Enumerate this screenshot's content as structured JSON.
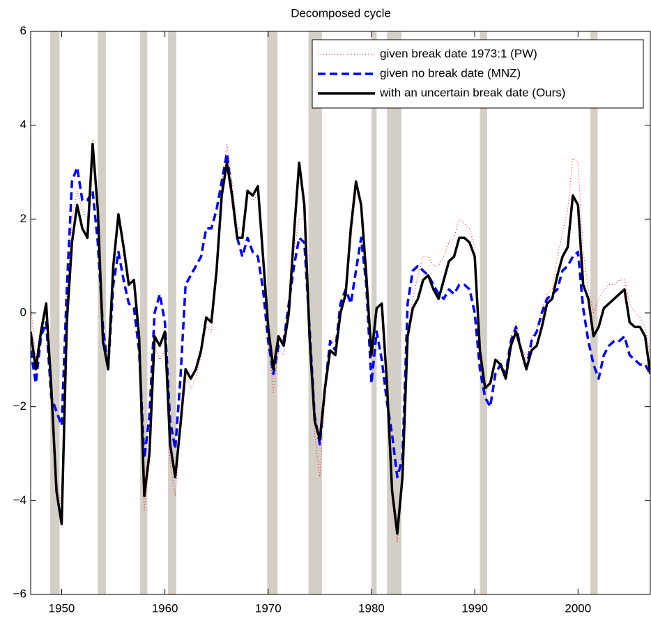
{
  "chart_data": {
    "type": "line",
    "title": "Decomposed cycle",
    "x": [
      1947,
      1947.5,
      1948,
      1948.5,
      1949,
      1949.5,
      1950,
      1950.5,
      1951,
      1951.5,
      1952,
      1952.5,
      1953,
      1953.5,
      1954,
      1954.5,
      1955,
      1955.5,
      1956,
      1956.5,
      1957,
      1957.5,
      1958,
      1958.5,
      1959,
      1959.5,
      1960,
      1960.5,
      1961,
      1961.5,
      1962,
      1962.5,
      1963,
      1963.5,
      1964,
      1964.5,
      1965,
      1965.5,
      1966,
      1966.5,
      1967,
      1967.5,
      1968,
      1968.5,
      1969,
      1969.5,
      1970,
      1970.5,
      1971,
      1971.5,
      1972,
      1972.5,
      1973,
      1973.5,
      1974,
      1974.5,
      1975,
      1975.5,
      1976,
      1976.5,
      1977,
      1977.5,
      1978,
      1978.5,
      1979,
      1979.5,
      1980,
      1980.5,
      1981,
      1981.5,
      1982,
      1982.5,
      1983,
      1983.5,
      1984,
      1984.5,
      1985,
      1985.5,
      1986,
      1986.5,
      1987,
      1987.5,
      1988,
      1988.5,
      1989,
      1989.5,
      1990,
      1990.5,
      1991,
      1991.5,
      1992,
      1992.5,
      1993,
      1993.5,
      1994,
      1994.5,
      1995,
      1995.5,
      1996,
      1996.5,
      1997,
      1997.5,
      1998,
      1998.5,
      1999,
      1999.5,
      2000,
      2000.5,
      2001,
      2001.5,
      2002,
      2002.5,
      2003,
      2003.5,
      2004,
      2004.5,
      2005,
      2005.5,
      2006,
      2006.5,
      2007
    ],
    "series": [
      {
        "name": "given break date 1973:1 (PW)",
        "color": "#ff0000",
        "style": "dotted",
        "values": [
          0.2,
          -1.0,
          -0.3,
          0.0,
          -1.3,
          -3.5,
          -4.2,
          0.3,
          2.0,
          2.6,
          2.2,
          2.0,
          3.7,
          2.2,
          -0.5,
          -1.0,
          1.0,
          2.0,
          1.5,
          0.8,
          0.6,
          -0.8,
          -4.2,
          -3.2,
          -0.7,
          -1.0,
          -0.8,
          -3.2,
          -3.9,
          -2.5,
          -1.3,
          -1.6,
          -1.4,
          -0.9,
          -0.3,
          -0.4,
          1.0,
          2.8,
          3.6,
          2.8,
          1.8,
          1.8,
          2.5,
          2.4,
          2.5,
          1.0,
          -0.5,
          -1.7,
          -0.8,
          -0.9,
          0.3,
          1.3,
          2.0,
          2.0,
          -0.6,
          -2.6,
          -3.5,
          -1.8,
          -0.8,
          -0.8,
          0.0,
          0.5,
          1.5,
          2.6,
          2.3,
          0.9,
          -1.0,
          -0.1,
          0.0,
          -1.8,
          -4.0,
          -4.9,
          -3.7,
          -0.4,
          0.3,
          0.8,
          1.2,
          1.2,
          1.0,
          1.0,
          1.2,
          1.5,
          1.6,
          2.0,
          1.9,
          1.8,
          1.4,
          -1.0,
          -1.7,
          -1.5,
          -1.0,
          -1.0,
          -1.3,
          -0.5,
          -0.2,
          -0.7,
          -1.0,
          -0.5,
          -0.4,
          0.1,
          0.4,
          0.5,
          1.2,
          1.7,
          2.2,
          3.3,
          3.2,
          1.3,
          0.5,
          0.0,
          0.3,
          0.5,
          0.6,
          0.6,
          0.7,
          0.7,
          0.2,
          0.0,
          -0.1,
          -0.3,
          -0.9
        ]
      },
      {
        "name": "given no break date (MNZ)",
        "color": "#0000ff",
        "style": "dashed",
        "values": [
          -0.8,
          -1.5,
          -0.5,
          -0.2,
          -1.8,
          -2.1,
          -2.4,
          0.5,
          2.8,
          3.1,
          2.4,
          2.4,
          2.6,
          1.5,
          -0.3,
          -1.2,
          0.6,
          1.3,
          0.7,
          0.2,
          0.1,
          -0.8,
          -3.1,
          -2.2,
          0.0,
          0.4,
          -0.2,
          -2.3,
          -2.9,
          -1.4,
          0.6,
          0.8,
          1.0,
          1.2,
          1.8,
          1.8,
          2.2,
          2.8,
          3.4,
          2.5,
          1.6,
          1.2,
          1.6,
          1.3,
          1.2,
          0.5,
          -0.6,
          -1.3,
          -0.7,
          -0.6,
          0.2,
          1.0,
          1.6,
          1.5,
          -0.3,
          -2.2,
          -2.8,
          -1.6,
          -0.6,
          -0.8,
          0.2,
          0.5,
          0.2,
          0.9,
          1.6,
          0.6,
          -1.5,
          -0.4,
          -1.0,
          -1.9,
          -2.6,
          -3.5,
          -3.1,
          0.2,
          0.9,
          1.0,
          0.9,
          0.8,
          0.6,
          0.4,
          0.3,
          0.5,
          0.4,
          0.6,
          0.6,
          0.5,
          0.0,
          -1.2,
          -1.8,
          -2.0,
          -1.3,
          -1.1,
          -1.3,
          -0.6,
          -0.3,
          -0.8,
          -1.2,
          -0.6,
          -0.4,
          0.0,
          0.3,
          0.4,
          0.5,
          0.9,
          1.0,
          1.2,
          1.3,
          0.1,
          -0.6,
          -1.1,
          -1.4,
          -0.9,
          -0.7,
          -0.6,
          -0.6,
          -0.5,
          -0.9,
          -1.0,
          -1.1,
          -1.1,
          -1.3
        ]
      },
      {
        "name": "with an uncertain break date (Ours)",
        "color": "#000000",
        "style": "solid",
        "values": [
          -0.4,
          -1.2,
          -0.4,
          0.2,
          -1.6,
          -3.8,
          -4.5,
          -0.2,
          1.5,
          2.3,
          1.8,
          1.6,
          3.6,
          2.2,
          -0.6,
          -1.2,
          1.0,
          2.1,
          1.4,
          0.6,
          0.7,
          -0.5,
          -3.9,
          -3.0,
          -0.5,
          -0.7,
          -0.4,
          -2.8,
          -3.5,
          -2.4,
          -1.2,
          -1.4,
          -1.2,
          -0.8,
          -0.1,
          -0.2,
          0.9,
          2.5,
          3.2,
          2.5,
          1.6,
          1.6,
          2.6,
          2.5,
          2.7,
          1.2,
          -0.3,
          -1.2,
          -0.5,
          -0.7,
          0.0,
          1.7,
          3.2,
          2.3,
          -0.5,
          -2.3,
          -2.7,
          -1.6,
          -0.8,
          -0.9,
          0.0,
          0.4,
          1.8,
          2.8,
          2.3,
          0.8,
          -0.9,
          0.1,
          0.2,
          -1.5,
          -3.8,
          -4.7,
          -3.5,
          -0.5,
          0.1,
          0.3,
          0.7,
          0.8,
          0.5,
          0.3,
          0.7,
          1.1,
          1.2,
          1.6,
          1.6,
          1.5,
          1.2,
          -0.8,
          -1.6,
          -1.5,
          -1.0,
          -1.1,
          -1.4,
          -0.7,
          -0.4,
          -0.8,
          -1.2,
          -0.8,
          -0.7,
          -0.3,
          0.2,
          0.3,
          0.8,
          1.2,
          1.4,
          2.5,
          2.3,
          0.6,
          0.3,
          -0.5,
          -0.3,
          0.1,
          0.2,
          0.3,
          0.4,
          0.5,
          -0.2,
          -0.3,
          -0.3,
          -0.5,
          -1.3
        ]
      }
    ],
    "shaded_periods": [
      [
        1948.9,
        1949.8
      ],
      [
        1953.5,
        1954.3
      ],
      [
        1957.6,
        1958.3
      ],
      [
        1960.3,
        1961.1
      ],
      [
        1969.9,
        1970.9
      ],
      [
        1973.9,
        1975.2
      ],
      [
        1980.0,
        1980.5
      ],
      [
        1981.5,
        1982.9
      ],
      [
        1990.5,
        1991.2
      ],
      [
        2001.2,
        2001.9
      ]
    ],
    "shade_color": "#d4cfc6",
    "xlim": [
      1947,
      2007
    ],
    "xticks": [
      1950,
      1960,
      1970,
      1980,
      1990,
      2000
    ],
    "ylim": [
      -6,
      6
    ],
    "yticks": [
      {
        "value": -6,
        "label": "−6"
      },
      {
        "value": -4,
        "label": "−4"
      },
      {
        "value": -2,
        "label": "−2"
      },
      0,
      2,
      4,
      6
    ],
    "grid": false,
    "legend": "upper right"
  }
}
